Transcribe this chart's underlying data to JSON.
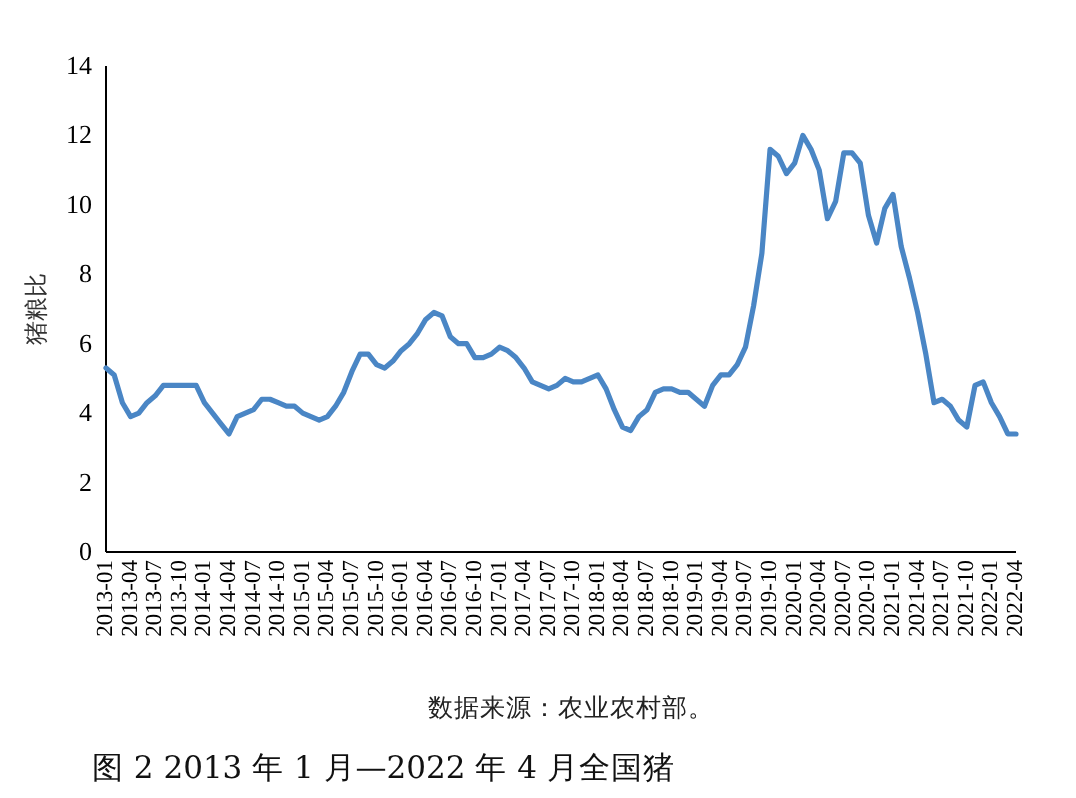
{
  "chart_data": {
    "type": "line",
    "title": "图 2 2013 年 1 月—2022 年 4 月全国猪",
    "ylabel": "猪粮比",
    "annotations": [
      "数据来源：农业农村部。"
    ],
    "categories": [
      "2013-01",
      null,
      null,
      "2013-04",
      null,
      null,
      "2013-07",
      null,
      null,
      "2013-10",
      null,
      null,
      "2014-01",
      null,
      null,
      "2014-04",
      null,
      null,
      "2014-07",
      null,
      null,
      "2014-10",
      null,
      null,
      "2015-01",
      null,
      null,
      "2015-04",
      null,
      null,
      "2015-07",
      null,
      null,
      "2015-10",
      null,
      null,
      "2016-01",
      null,
      null,
      "2016-04",
      null,
      null,
      "2016-07",
      null,
      null,
      "2016-10",
      null,
      null,
      "2017-01",
      null,
      null,
      "2017-04",
      null,
      null,
      "2017-07",
      null,
      null,
      "2017-10",
      null,
      null,
      "2018-01",
      null,
      null,
      "2018-04",
      null,
      null,
      "2018-07",
      null,
      null,
      "2018-10",
      null,
      null,
      "2019-01",
      null,
      null,
      "2019-04",
      null,
      null,
      "2019-07",
      null,
      null,
      "2019-10",
      null,
      null,
      "2020-01",
      null,
      null,
      "2020-04",
      null,
      null,
      "2020-07",
      null,
      null,
      "2020-10",
      null,
      null,
      "2021-01",
      null,
      null,
      "2021-04",
      null,
      null,
      "2021-07",
      null,
      null,
      "2021-10",
      null,
      null,
      "2022-01",
      null,
      null,
      "2022-04"
    ],
    "series": [
      {
        "color": "#4a86c5",
        "values": [
          5.3,
          5.1,
          4.3,
          3.9,
          4.0,
          4.3,
          4.5,
          4.8,
          4.8,
          4.8,
          4.8,
          4.8,
          4.3,
          4.0,
          3.7,
          3.4,
          3.9,
          4.0,
          4.1,
          4.4,
          4.4,
          4.3,
          4.2,
          4.2,
          4.0,
          3.9,
          3.8,
          3.9,
          4.2,
          4.6,
          5.2,
          5.7,
          5.7,
          5.4,
          5.3,
          5.5,
          5.8,
          6.0,
          6.3,
          6.7,
          6.9,
          6.8,
          6.2,
          6.0,
          6.0,
          5.6,
          5.6,
          5.7,
          5.9,
          5.8,
          5.6,
          5.3,
          4.9,
          4.8,
          4.7,
          4.8,
          5.0,
          4.9,
          4.9,
          5.0,
          5.1,
          4.7,
          4.1,
          3.6,
          3.5,
          3.9,
          4.1,
          4.6,
          4.7,
          4.7,
          4.6,
          4.6,
          4.4,
          4.2,
          4.8,
          5.1,
          5.1,
          5.4,
          5.9,
          7.1,
          8.6,
          11.6,
          11.4,
          10.9,
          11.2,
          12.0,
          11.6,
          11.0,
          9.6,
          10.1,
          11.5,
          11.5,
          11.2,
          9.7,
          8.9,
          9.9,
          10.3,
          8.8,
          7.9,
          6.9,
          5.7,
          4.3,
          4.4,
          4.2,
          3.8,
          3.6,
          4.8,
          4.9,
          4.3,
          3.9,
          3.4,
          3.4
        ]
      }
    ],
    "ylim": [
      0,
      14
    ],
    "yticks": [
      0,
      2,
      4,
      6,
      8,
      10,
      12,
      14
    ]
  }
}
